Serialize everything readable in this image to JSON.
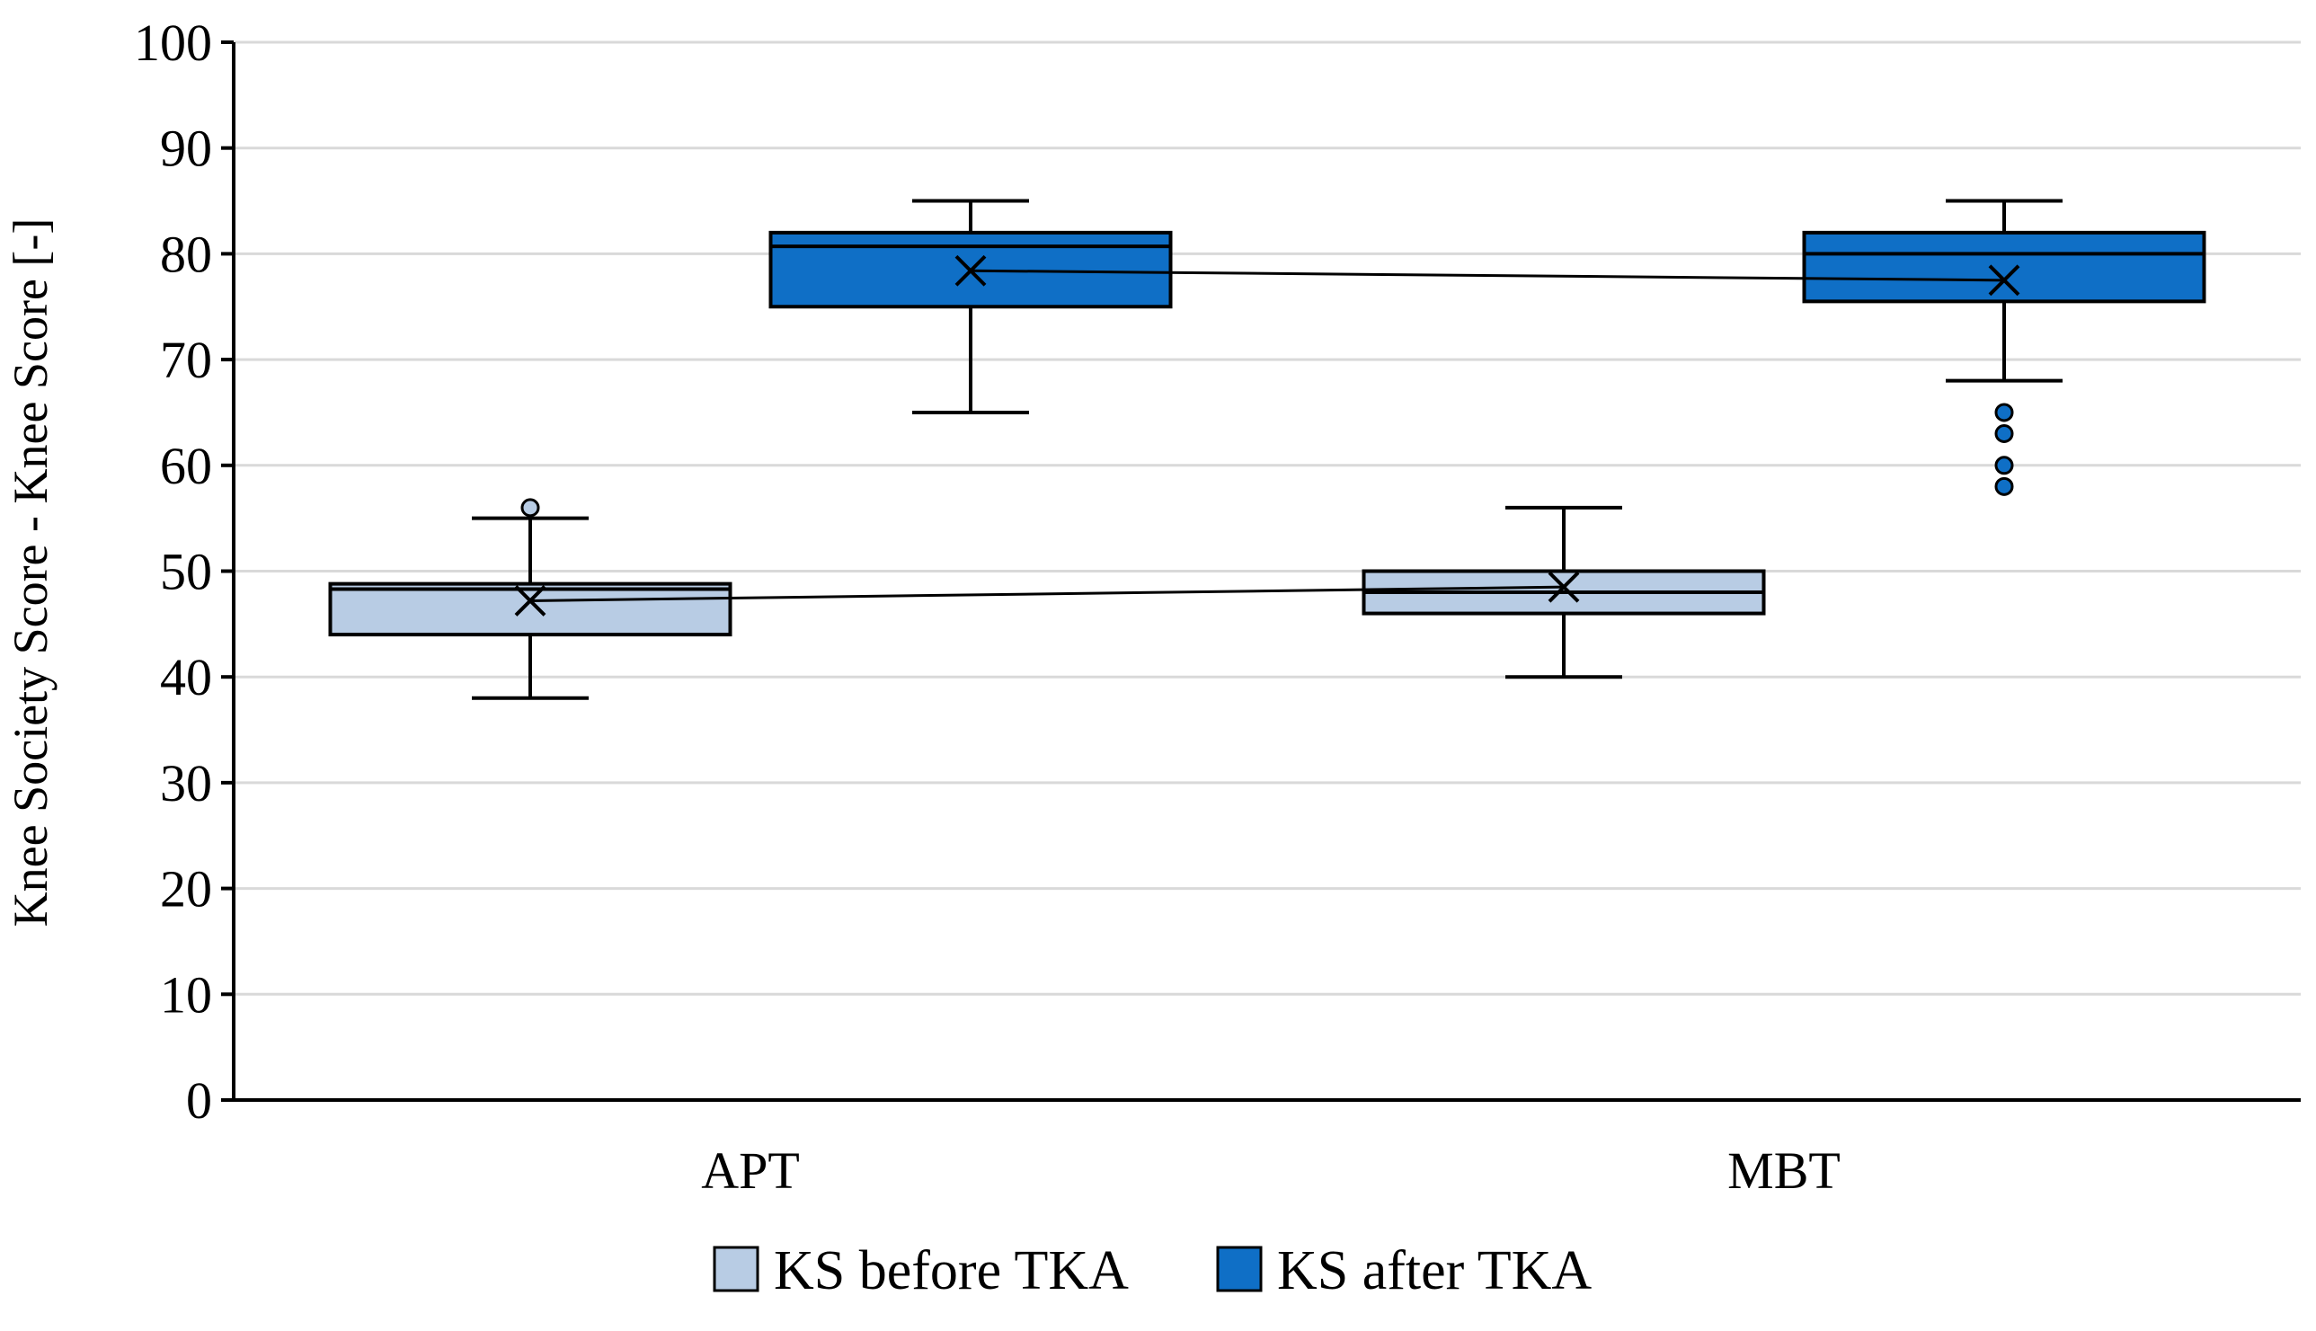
{
  "chart_data": {
    "type": "box",
    "ylabel": "Knee Society Score - Knee Score [-]",
    "ylim": [
      0,
      100
    ],
    "yticks": [
      0,
      10,
      20,
      30,
      40,
      50,
      60,
      70,
      80,
      90,
      100
    ],
    "grid": true,
    "categories": [
      "APT",
      "MBT"
    ],
    "legend_position": "bottom",
    "series": [
      {
        "name": "KS before TKA",
        "color": "#b8cce4",
        "boxes": [
          {
            "category": "APT",
            "min": 38,
            "q1": 44,
            "median": 48.3,
            "q3": 48.8,
            "max": 55,
            "mean": 47.2,
            "outliers": [
              56
            ]
          },
          {
            "category": "MBT",
            "min": 40,
            "q1": 46,
            "median": 48,
            "q3": 50,
            "max": 56,
            "mean": 48.5,
            "outliers": []
          }
        ]
      },
      {
        "name": "KS after TKA",
        "color": "#0f6fc6",
        "boxes": [
          {
            "category": "APT",
            "min": 65,
            "q1": 75,
            "median": 80.7,
            "q3": 82,
            "max": 85,
            "mean": 78.4,
            "outliers": []
          },
          {
            "category": "MBT",
            "min": 68,
            "q1": 75.5,
            "median": 80,
            "q3": 82,
            "max": 85,
            "mean": 77.5,
            "outliers": [
              65,
              63,
              60,
              58
            ]
          }
        ]
      }
    ]
  }
}
